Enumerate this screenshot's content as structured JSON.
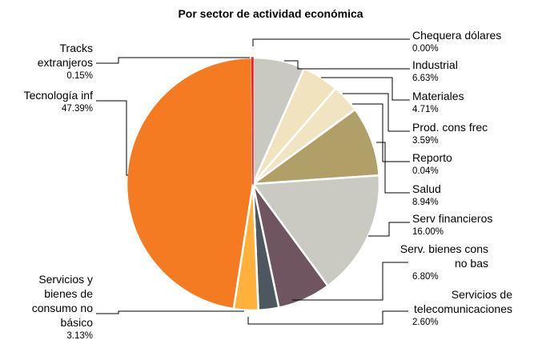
{
  "chart_data": {
    "type": "pie",
    "title": "Por sector de actividad económica",
    "slices": [
      {
        "label": [
          "Chequera dólares"
        ],
        "pct_label": "0.00%",
        "value": 0.0,
        "color": "#c8c8c8"
      },
      {
        "label": [
          "Industrial"
        ],
        "pct_label": "6.63%",
        "value": 6.63,
        "color": "#c9c9c1"
      },
      {
        "label": [
          "Materiales"
        ],
        "pct_label": "4.71%",
        "value": 4.71,
        "color": "#f0e3bd"
      },
      {
        "label": [
          "Prod. cons frec"
        ],
        "pct_label": "3.59%",
        "value": 3.59,
        "color": "#f1e4c2"
      },
      {
        "label": [
          "Reporto"
        ],
        "pct_label": "0.04%",
        "value": 0.04,
        "color": "#c7b583"
      },
      {
        "label": [
          "Salud"
        ],
        "pct_label": "8.94%",
        "value": 8.94,
        "color": "#b09f66"
      },
      {
        "label": [
          "Serv financieros"
        ],
        "pct_label": "16.00%",
        "value": 16.0,
        "color": "#cacac3"
      },
      {
        "label": [
          "Serv. bienes cons",
          "no bas"
        ],
        "pct_label": "6.80%",
        "value": 6.8,
        "color": "#6f555f"
      },
      {
        "label": [
          "Servicios de",
          "telecomunicaciones"
        ],
        "pct_label": "2.60%",
        "value": 2.6,
        "color": "#4d5760"
      },
      {
        "label": [
          "Servicios y",
          "bienes de",
          "consumo no",
          "básico"
        ],
        "pct_label": "3.13%",
        "value": 3.13,
        "color": "#ffb13c"
      },
      {
        "label": [
          "Tecnología inf"
        ],
        "pct_label": "47.39%",
        "value": 47.39,
        "color": "#f47b22"
      },
      {
        "label": [
          "Tracks",
          "extranjeros"
        ],
        "pct_label": "0.15%",
        "value": 0.15,
        "color": "#e8232c"
      }
    ]
  }
}
